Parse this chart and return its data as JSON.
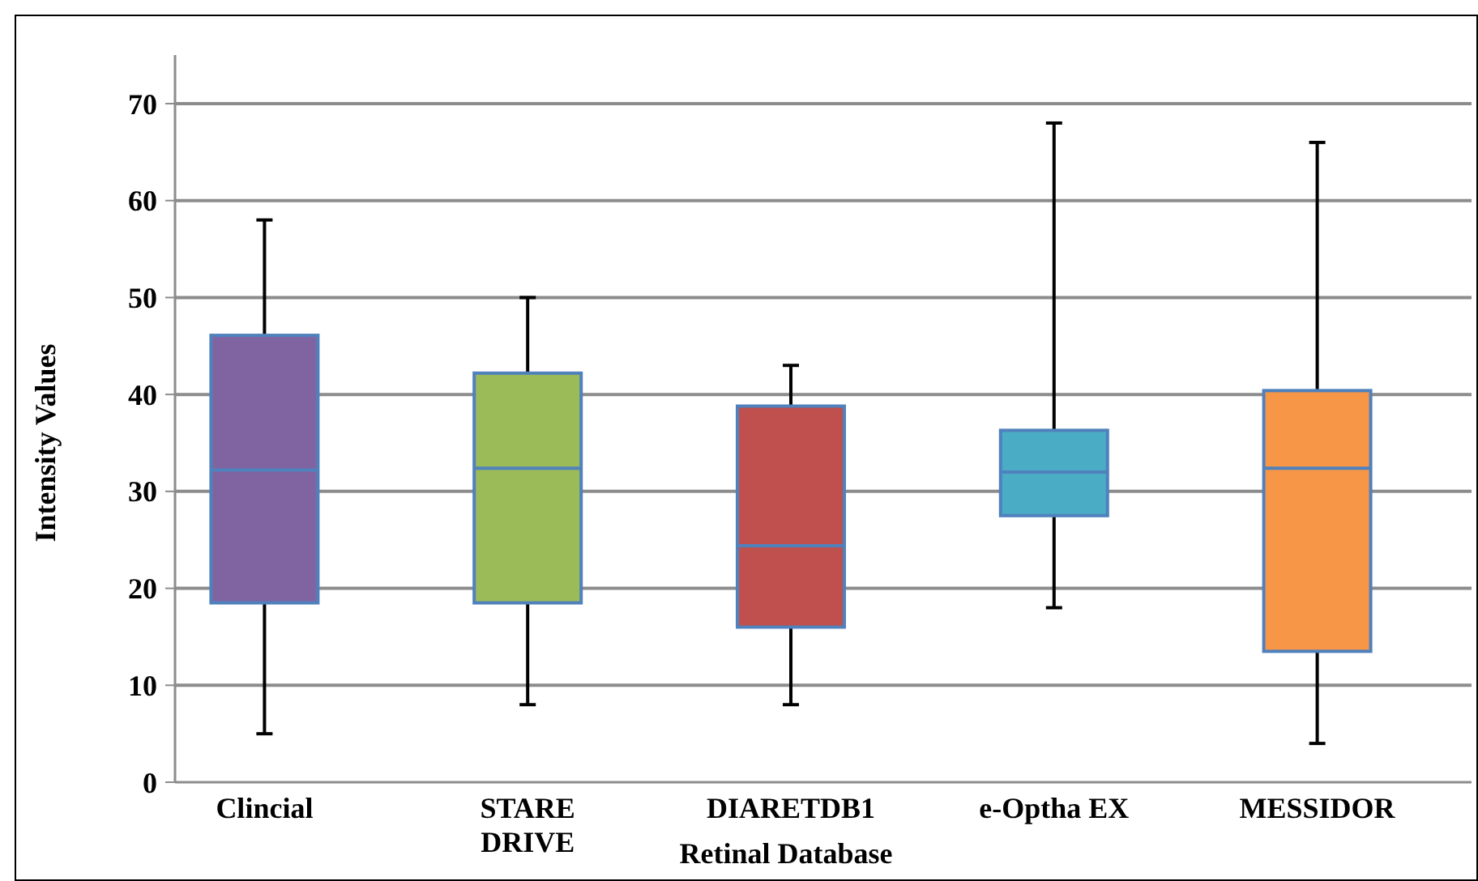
{
  "chart_data": {
    "type": "box",
    "xlabel": "Retinal Database",
    "ylabel": "Intensity Values",
    "categories": [
      "Clincial",
      "STARE\nDRIVE",
      "DIARETDB1",
      "e-Optha EX",
      "MESSIDOR"
    ],
    "colors": [
      "#8064a2",
      "#9bbb59",
      "#c0504d",
      "#4bacc6",
      "#f79646"
    ],
    "boxes": [
      {
        "low": 5,
        "q1": 18.5,
        "median": 32.2,
        "q3": 46.1,
        "high": 58
      },
      {
        "low": 8,
        "q1": 18.5,
        "median": 32.4,
        "q3": 42.2,
        "high": 50
      },
      {
        "low": 8,
        "q1": 16,
        "median": 24.4,
        "q3": 38.8,
        "high": 43
      },
      {
        "low": 18,
        "q1": 27.5,
        "median": 32,
        "q3": 36.3,
        "high": 68
      },
      {
        "low": 4,
        "q1": 13.5,
        "median": 32.4,
        "q3": 40.4,
        "high": 66
      }
    ],
    "ylim": [
      0,
      70
    ],
    "yticks": [
      0,
      10,
      20,
      30,
      40,
      50,
      60,
      70
    ],
    "grid": "y"
  }
}
